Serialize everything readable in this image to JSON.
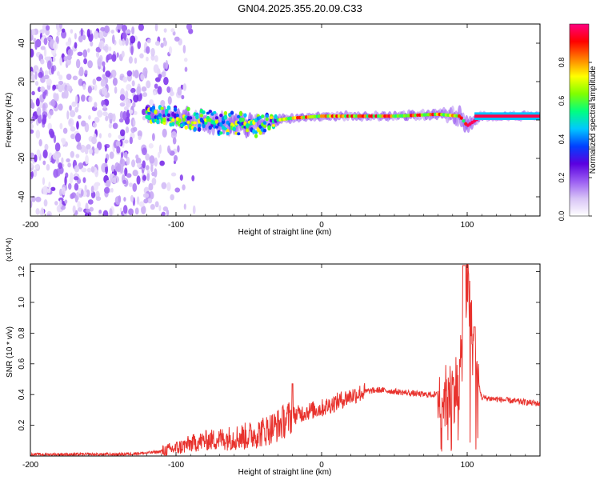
{
  "figure": {
    "title": "GN04.2025.355.20.09.C33"
  },
  "chart_data": [
    {
      "type": "heatmap",
      "xlabel": "Height of straight line (km)",
      "ylabel": "Frequency (Hz)",
      "xlim": [
        -200,
        150
      ],
      "ylim": [
        -50,
        50
      ],
      "xticks": [
        {
          "v": -200,
          "label": "-200"
        },
        {
          "v": -100,
          "label": "-100"
        },
        {
          "v": 0,
          "label": "0"
        },
        {
          "v": 100,
          "label": "100"
        }
      ],
      "yticks": [
        {
          "v": -40,
          "label": "-40"
        },
        {
          "v": -20,
          "label": "-20"
        },
        {
          "v": 0,
          "label": "0"
        },
        {
          "v": 20,
          "label": "20"
        },
        {
          "v": 40,
          "label": "40"
        }
      ],
      "colorbar": {
        "label": "Normalized spectral amplitude",
        "range": [
          0,
          1
        ],
        "ticks": [
          {
            "v": 0.0,
            "label": "0.0"
          },
          {
            "v": 0.2,
            "label": "0.2"
          },
          {
            "v": 0.4,
            "label": "0.4"
          },
          {
            "v": 0.6,
            "label": "0.6"
          },
          {
            "v": 0.8,
            "label": "0.8"
          }
        ],
        "colormap": [
          "#ffffff",
          "#d8c4f6",
          "#9a5cf2",
          "#5a00e0",
          "#0040ff",
          "#00c8ff",
          "#00ff80",
          "#80ff00",
          "#ffff00",
          "#ff8000",
          "#ff0000",
          "#ff0080"
        ]
      },
      "noise_region": {
        "x": [
          -200,
          -100
        ],
        "y": [
          -50,
          50
        ]
      },
      "signal_band": [
        {
          "x": -120,
          "f": 3,
          "half_width": 5
        },
        {
          "x": -100,
          "f": 2,
          "half_width": 7
        },
        {
          "x": -80,
          "f": -1,
          "half_width": 8
        },
        {
          "x": -60,
          "f": -2,
          "half_width": 9
        },
        {
          "x": -45,
          "f": -3,
          "half_width": 8
        },
        {
          "x": -30,
          "f": 0,
          "half_width": 4
        },
        {
          "x": -20,
          "f": 1,
          "half_width": 3
        },
        {
          "x": 0,
          "f": 2,
          "half_width": 3
        },
        {
          "x": 50,
          "f": 2,
          "half_width": 3
        },
        {
          "x": 80,
          "f": 3,
          "half_width": 4
        },
        {
          "x": 95,
          "f": 2,
          "half_width": 7
        },
        {
          "x": 100,
          "f": -3,
          "half_width": 6
        },
        {
          "x": 110,
          "f": 2,
          "half_width": 3
        },
        {
          "x": 150,
          "f": 2,
          "half_width": 3
        }
      ]
    },
    {
      "type": "line",
      "xlabel": "Height of straight line (km)",
      "ylabel": "SNR (10 * v/v)",
      "multiplier": "(x10^4)",
      "xlim": [
        -200,
        150
      ],
      "ylim": [
        0,
        1.25
      ],
      "xticks": [
        {
          "v": -200,
          "label": "-200"
        },
        {
          "v": -100,
          "label": "-100"
        },
        {
          "v": 0,
          "label": "0"
        },
        {
          "v": 100,
          "label": "100"
        }
      ],
      "yticks": [
        {
          "v": 0.2,
          "label": "0.2"
        },
        {
          "v": 0.4,
          "label": "0.4"
        },
        {
          "v": 0.6,
          "label": "0.6"
        },
        {
          "v": 0.8,
          "label": "0.8"
        },
        {
          "v": 1.0,
          "label": "1.0"
        },
        {
          "v": 1.2,
          "label": "1.2"
        }
      ],
      "series": [
        {
          "color": "#e8322d",
          "x": [
            -200,
            -180,
            -160,
            -140,
            -120,
            -110,
            -100,
            -90,
            -80,
            -70,
            -60,
            -50,
            -40,
            -30,
            -20,
            -10,
            0,
            10,
            20,
            30,
            40,
            50,
            60,
            70,
            80,
            85,
            90,
            95,
            98,
            100,
            105,
            110,
            120,
            130,
            140,
            150
          ],
          "y": [
            0.01,
            0.01,
            0.01,
            0.01,
            0.02,
            0.03,
            0.05,
            0.08,
            0.1,
            0.11,
            0.12,
            0.13,
            0.16,
            0.2,
            0.26,
            0.29,
            0.31,
            0.35,
            0.39,
            0.42,
            0.43,
            0.42,
            0.41,
            0.4,
            0.4,
            0.38,
            0.42,
            0.5,
            0.9,
            1.15,
            0.6,
            0.38,
            0.37,
            0.36,
            0.35,
            0.34
          ]
        }
      ]
    }
  ]
}
